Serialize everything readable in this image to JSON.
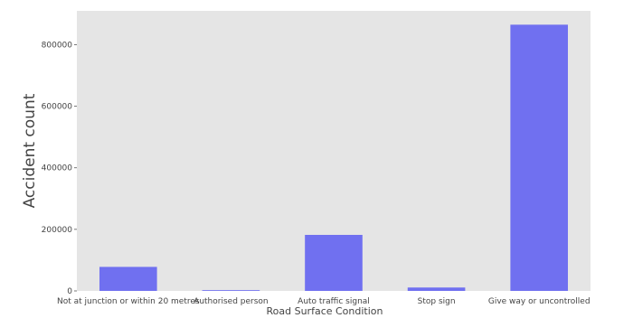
{
  "chart_data": {
    "type": "bar",
    "xlabel": "Road Surface Condition",
    "ylabel": "Accident count",
    "categories": [
      "Not at junction or within 20 metres",
      "Authorised person",
      "Auto traffic signal",
      "Stop sign",
      "Give way or uncontrolled"
    ],
    "values": [
      78000,
      2500,
      182000,
      11000,
      865000
    ],
    "yticks": [
      0,
      200000,
      400000,
      600000,
      800000
    ],
    "ytick_labels": [
      "0",
      "200000",
      "400000",
      "600000",
      "800000"
    ],
    "ylim": [
      0,
      910000
    ],
    "bar_color": "#7070f0",
    "plot_background": "#e5e5e5",
    "grid": false
  }
}
